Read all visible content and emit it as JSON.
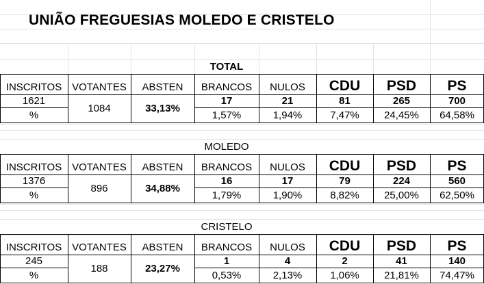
{
  "title": "UNIÃO FREGUESIAS MOLEDO E CRISTELO",
  "headers": {
    "inscritos": "INSCRITOS",
    "votantes": "VOTANTES",
    "absten": "ABSTEN",
    "brancos": "BRANCOS",
    "nulos": "NULOS",
    "cdu": "CDU",
    "psd": "PSD",
    "ps": "PS"
  },
  "sections": [
    {
      "name": "TOTAL",
      "inscritos": "1621",
      "pct_label": "%",
      "votantes": "1084",
      "absten": "33,13%",
      "brancos": "17",
      "brancos_pct": "1,57%",
      "nulos": "21",
      "nulos_pct": "1,94%",
      "cdu": "81",
      "cdu_pct": "7,47%",
      "psd": "265",
      "psd_pct": "24,45%",
      "ps": "700",
      "ps_pct": "64,58%"
    },
    {
      "name": "MOLEDO",
      "inscritos": "1376",
      "pct_label": "%",
      "votantes": "896",
      "absten": "34,88%",
      "brancos": "16",
      "brancos_pct": "1,79%",
      "nulos": "17",
      "nulos_pct": "1,90%",
      "cdu": "79",
      "cdu_pct": "8,82%",
      "psd": "224",
      "psd_pct": "25,00%",
      "ps": "560",
      "ps_pct": "62,50%"
    },
    {
      "name": "CRISTELO",
      "inscritos": "245",
      "pct_label": "%",
      "votantes": "188",
      "absten": "23,27%",
      "brancos": "1",
      "brancos_pct": "0,53%",
      "nulos": "4",
      "nulos_pct": "2,13%",
      "cdu": "2",
      "cdu_pct": "1,06%",
      "psd": "41",
      "psd_pct": "21,81%",
      "ps": "140",
      "ps_pct": "74,47%"
    }
  ]
}
